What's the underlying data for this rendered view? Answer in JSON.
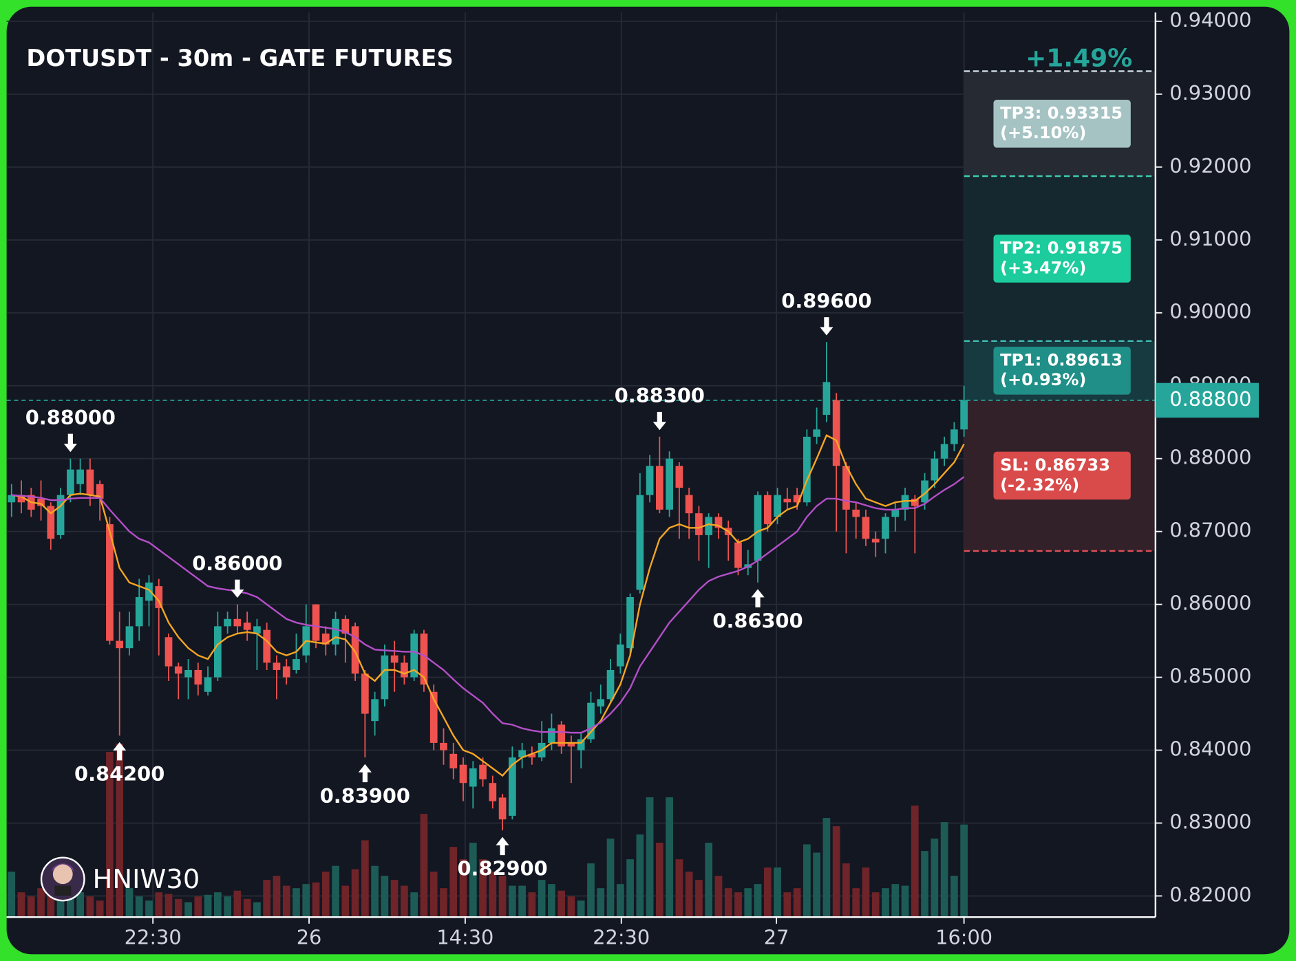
{
  "chart_data": {
    "type": "candlestick",
    "title": "DOTUSDT - 30m - GATE FUTURES",
    "watermark": "HNIW30",
    "pnl_label": "+1.49%",
    "x": [
      0,
      1,
      2,
      3,
      4,
      5,
      6,
      7,
      8,
      9,
      10,
      11,
      12,
      13,
      14,
      15,
      16,
      17,
      18,
      19,
      20,
      21,
      22,
      23,
      24,
      25,
      26,
      27,
      28,
      29,
      30,
      31,
      32,
      33,
      34,
      35,
      36,
      37,
      38,
      39,
      40,
      41,
      42,
      43,
      44,
      45,
      46,
      47,
      48,
      49,
      50,
      51,
      52,
      53,
      54,
      55,
      56,
      57,
      58,
      59,
      60,
      61,
      62,
      63,
      64,
      65,
      66,
      67,
      68,
      69,
      70,
      71,
      72,
      73,
      74,
      75,
      76,
      77,
      78,
      79,
      80,
      81,
      82,
      83,
      84,
      85,
      86,
      87,
      88,
      89,
      90,
      91,
      92,
      93,
      94,
      95,
      96,
      97
    ],
    "open": [
      0.874,
      0.875,
      0.875,
      0.8745,
      0.8735,
      0.8695,
      0.875,
      0.8765,
      0.8785,
      0.8765,
      0.871,
      0.855,
      0.854,
      0.857,
      0.8605,
      0.8625,
      0.8555,
      0.8515,
      0.85,
      0.851,
      0.848,
      0.85,
      0.857,
      0.858,
      0.8575,
      0.856,
      0.8565,
      0.852,
      0.8515,
      0.851,
      0.853,
      0.86,
      0.856,
      0.8545,
      0.858,
      0.857,
      0.8505,
      0.844,
      0.847,
      0.853,
      0.852,
      0.85,
      0.856,
      0.848,
      0.841,
      0.8395,
      0.838,
      0.835,
      0.838,
      0.8355,
      0.8335,
      0.831,
      0.839,
      0.8395,
      0.839,
      0.841,
      0.8435,
      0.841,
      0.84,
      0.8415,
      0.846,
      0.847,
      0.8515,
      0.854,
      0.862,
      0.875,
      0.879,
      0.873,
      0.879,
      0.875,
      0.8725,
      0.8695,
      0.872,
      0.8705,
      0.8685,
      0.865,
      0.866,
      0.875,
      0.872,
      0.8745,
      0.875,
      0.874,
      0.883,
      0.886,
      0.888,
      0.879,
      0.873,
      0.872,
      0.869,
      0.869,
      0.872,
      0.873,
      0.8745,
      0.874,
      0.877,
      0.88,
      0.882,
      0.884
    ],
    "high": [
      0.8765,
      0.877,
      0.876,
      0.877,
      0.874,
      0.876,
      0.88,
      0.88,
      0.88,
      0.877,
      0.872,
      0.859,
      0.859,
      0.8635,
      0.864,
      0.8635,
      0.856,
      0.852,
      0.8525,
      0.852,
      0.8515,
      0.859,
      0.859,
      0.86,
      0.859,
      0.858,
      0.8575,
      0.853,
      0.8525,
      0.856,
      0.86,
      0.86,
      0.857,
      0.859,
      0.8585,
      0.8575,
      0.851,
      0.848,
      0.8545,
      0.855,
      0.853,
      0.8565,
      0.8565,
      0.849,
      0.843,
      0.841,
      0.839,
      0.8385,
      0.839,
      0.8365,
      0.834,
      0.8405,
      0.841,
      0.8405,
      0.844,
      0.845,
      0.844,
      0.842,
      0.8425,
      0.848,
      0.849,
      0.8525,
      0.856,
      0.8615,
      0.878,
      0.8805,
      0.883,
      0.881,
      0.8795,
      0.876,
      0.8735,
      0.8725,
      0.8725,
      0.8715,
      0.869,
      0.8675,
      0.8755,
      0.8755,
      0.876,
      0.876,
      0.876,
      0.884,
      0.887,
      0.896,
      0.889,
      0.8795,
      0.874,
      0.873,
      0.87,
      0.8725,
      0.874,
      0.876,
      0.875,
      0.878,
      0.881,
      0.883,
      0.885,
      0.89
    ],
    "low": [
      0.872,
      0.8725,
      0.872,
      0.8715,
      0.8675,
      0.869,
      0.874,
      0.875,
      0.8735,
      0.8715,
      0.8545,
      0.842,
      0.853,
      0.855,
      0.857,
      0.853,
      0.8495,
      0.847,
      0.847,
      0.8475,
      0.8475,
      0.8495,
      0.856,
      0.856,
      0.855,
      0.851,
      0.851,
      0.847,
      0.849,
      0.8505,
      0.852,
      0.854,
      0.853,
      0.853,
      0.852,
      0.8495,
      0.839,
      0.842,
      0.846,
      0.848,
      0.849,
      0.8495,
      0.848,
      0.84,
      0.838,
      0.836,
      0.833,
      0.832,
      0.835,
      0.832,
      0.829,
      0.8305,
      0.8375,
      0.838,
      0.8385,
      0.84,
      0.8395,
      0.8355,
      0.8375,
      0.841,
      0.845,
      0.8465,
      0.8505,
      0.853,
      0.8615,
      0.874,
      0.8725,
      0.872,
      0.869,
      0.869,
      0.866,
      0.865,
      0.869,
      0.866,
      0.864,
      0.864,
      0.863,
      0.87,
      0.871,
      0.873,
      0.873,
      0.8735,
      0.882,
      0.885,
      0.87,
      0.867,
      0.869,
      0.868,
      0.8665,
      0.867,
      0.87,
      0.8715,
      0.867,
      0.873,
      0.876,
      0.879,
      0.881,
      0.883
    ],
    "close": [
      0.875,
      0.874,
      0.873,
      0.8735,
      0.869,
      0.875,
      0.8785,
      0.8785,
      0.875,
      0.8745,
      0.855,
      0.854,
      0.857,
      0.861,
      0.863,
      0.8595,
      0.8515,
      0.8505,
      0.851,
      0.849,
      0.85,
      0.857,
      0.858,
      0.857,
      0.8565,
      0.857,
      0.852,
      0.851,
      0.85,
      0.8525,
      0.857,
      0.855,
      0.8545,
      0.858,
      0.856,
      0.8505,
      0.845,
      0.847,
      0.853,
      0.852,
      0.85,
      0.856,
      0.849,
      0.841,
      0.84,
      0.8375,
      0.8355,
      0.8375,
      0.836,
      0.833,
      0.8305,
      0.839,
      0.84,
      0.839,
      0.841,
      0.843,
      0.8405,
      0.8405,
      0.8415,
      0.8465,
      0.847,
      0.851,
      0.8545,
      0.861,
      0.875,
      0.879,
      0.873,
      0.88,
      0.876,
      0.8725,
      0.8695,
      0.872,
      0.8705,
      0.8695,
      0.865,
      0.8655,
      0.875,
      0.871,
      0.875,
      0.874,
      0.874,
      0.883,
      0.884,
      0.8905,
      0.879,
      0.873,
      0.872,
      0.869,
      0.8685,
      0.872,
      0.873,
      0.875,
      0.8735,
      0.877,
      0.88,
      0.882,
      0.884,
      0.888
    ],
    "up_color": "#26a69a",
    "down_color": "#ef5350",
    "volume": [
      55,
      30,
      25,
      35,
      25,
      28,
      40,
      30,
      25,
      20,
      200,
      210,
      35,
      25,
      20,
      30,
      28,
      22,
      18,
      25,
      27,
      30,
      25,
      32,
      22,
      18,
      45,
      50,
      38,
      35,
      40,
      42,
      55,
      62,
      38,
      58,
      93,
      62,
      50,
      45,
      38,
      30,
      125,
      55,
      35,
      85,
      70,
      90,
      70,
      55,
      50,
      38,
      38,
      30,
      45,
      40,
      32,
      25,
      20,
      65,
      35,
      95,
      40,
      70,
      100,
      145,
      90,
      145,
      70,
      55,
      45,
      90,
      50,
      35,
      30,
      35,
      40,
      60,
      60,
      30,
      35,
      88,
      78,
      120,
      110,
      65,
      35,
      60,
      30,
      35,
      40,
      38,
      135,
      80,
      95,
      115,
      50,
      112
    ],
    "volume_up_color": "#1d5c56",
    "volume_down_color": "#6e2428",
    "series": [
      {
        "color": "#f5a623",
        "values": [
          0.875,
          0.8748,
          0.874,
          0.8738,
          0.8725,
          0.8735,
          0.875,
          0.8752,
          0.875,
          0.8748,
          0.87,
          0.865,
          0.863,
          0.8625,
          0.862,
          0.8605,
          0.8575,
          0.8555,
          0.854,
          0.853,
          0.8525,
          0.8545,
          0.8555,
          0.856,
          0.8562,
          0.856,
          0.855,
          0.8535,
          0.853,
          0.8535,
          0.855,
          0.8548,
          0.8546,
          0.8555,
          0.8552,
          0.8535,
          0.8505,
          0.8495,
          0.851,
          0.851,
          0.8505,
          0.851,
          0.85,
          0.847,
          0.8445,
          0.842,
          0.84,
          0.8395,
          0.8385,
          0.8375,
          0.8365,
          0.838,
          0.839,
          0.8395,
          0.84,
          0.841,
          0.841,
          0.841,
          0.841,
          0.8425,
          0.844,
          0.8465,
          0.849,
          0.853,
          0.86,
          0.865,
          0.869,
          0.8705,
          0.871,
          0.8705,
          0.8705,
          0.871,
          0.8708,
          0.87,
          0.8685,
          0.869,
          0.87,
          0.8705,
          0.872,
          0.873,
          0.8735,
          0.877,
          0.88,
          0.8832,
          0.8825,
          0.879,
          0.8765,
          0.8745,
          0.874,
          0.8735,
          0.874,
          0.8742,
          0.8742,
          0.8752,
          0.8765,
          0.878,
          0.8795,
          0.882
        ]
      },
      {
        "color": "#b44fc8",
        "values": [
          0.875,
          0.8749,
          0.8748,
          0.8746,
          0.8743,
          0.8743,
          0.8745,
          0.8746,
          0.8746,
          0.8746,
          0.873,
          0.8715,
          0.87,
          0.869,
          0.8685,
          0.8675,
          0.8665,
          0.8655,
          0.8645,
          0.8635,
          0.8625,
          0.8622,
          0.862,
          0.8618,
          0.8615,
          0.861,
          0.86,
          0.859,
          0.858,
          0.8575,
          0.8572,
          0.857,
          0.8568,
          0.8566,
          0.8562,
          0.8555,
          0.8545,
          0.8538,
          0.8537,
          0.8536,
          0.8535,
          0.8535,
          0.853,
          0.852,
          0.851,
          0.8497,
          0.8485,
          0.8475,
          0.8465,
          0.845,
          0.8437,
          0.8435,
          0.843,
          0.8427,
          0.8425,
          0.8425,
          0.8425,
          0.8424,
          0.8424,
          0.843,
          0.8438,
          0.845,
          0.8465,
          0.8485,
          0.8515,
          0.8535,
          0.8555,
          0.8575,
          0.859,
          0.8605,
          0.862,
          0.8632,
          0.8638,
          0.8642,
          0.8646,
          0.8652,
          0.866,
          0.867,
          0.868,
          0.869,
          0.87,
          0.872,
          0.8735,
          0.8745,
          0.8745,
          0.8742,
          0.874,
          0.8736,
          0.8732,
          0.873,
          0.873,
          0.8732,
          0.8732,
          0.8738,
          0.8748,
          0.8757,
          0.8765,
          0.8775
        ]
      }
    ],
    "xlim": [
      -0.5,
      116.5
    ],
    "xticks": [
      {
        "value": 14.4,
        "label": "22:30"
      },
      {
        "value": 30.3,
        "label": "26"
      },
      {
        "value": 46.2,
        "label": "14:30"
      },
      {
        "value": 62.1,
        "label": "22:30"
      },
      {
        "value": 77.9,
        "label": "27"
      },
      {
        "value": 97,
        "label": "16:00"
      }
    ],
    "ylim": [
      0.8171,
      0.9412
    ],
    "yticks": [
      {
        "value": 0.82,
        "label": "0.82000"
      },
      {
        "value": 0.83,
        "label": "0.83000"
      },
      {
        "value": 0.84,
        "label": "0.84000"
      },
      {
        "value": 0.85,
        "label": "0.85000"
      },
      {
        "value": 0.86,
        "label": "0.86000"
      },
      {
        "value": 0.87,
        "label": "0.87000"
      },
      {
        "value": 0.88,
        "label": "0.88000"
      },
      {
        "value": 0.89,
        "label": "0.89000"
      },
      {
        "value": 0.9,
        "label": "0.90000"
      },
      {
        "value": 0.91,
        "label": "0.91000"
      },
      {
        "value": 0.92,
        "label": "0.92000"
      },
      {
        "value": 0.93,
        "label": "0.93000"
      },
      {
        "value": 0.94,
        "label": "0.94000"
      }
    ],
    "grid": true,
    "last_price": {
      "value": 0.888,
      "label": "0.88800",
      "color": "#26a69a"
    },
    "levels": [
      {
        "value": 0.89613,
        "label": "TP1: 0.89613",
        "change": "(+0.93%)",
        "line_color": "#3fb8ad",
        "zone_color": "#173a40",
        "box_color": "#1f8f87"
      },
      {
        "value": 0.91875,
        "label": "TP2: 0.91875",
        "change": "(+3.47%)",
        "line_color": "#3fcfb0",
        "zone_color": "#15272f",
        "box_color": "#1ccc9c"
      },
      {
        "value": 0.93315,
        "label": "TP3: 0.93315",
        "change": "(+5.10%)",
        "line_color": "#c9d3da",
        "zone_color": "#252a33",
        "box_color": "#a6c3c4"
      },
      {
        "value": 0.86733,
        "label": "SL: 0.86733",
        "change": "(-2.32%)",
        "line_color": "#e04f55",
        "zone_color": "#33212a",
        "box_color": "#d94a4a"
      }
    ],
    "annotations": [
      {
        "x": 6,
        "value": 0.88,
        "label": "0.88000",
        "position": "above"
      },
      {
        "x": 11,
        "value": 0.842,
        "label": "0.84200",
        "position": "below"
      },
      {
        "x": 23,
        "value": 0.86,
        "label": "0.86000",
        "position": "above"
      },
      {
        "x": 36,
        "value": 0.839,
        "label": "0.83900",
        "position": "below"
      },
      {
        "x": 50,
        "value": 0.829,
        "label": "0.82900",
        "position": "below"
      },
      {
        "x": 66,
        "value": 0.883,
        "label": "0.88300",
        "position": "above"
      },
      {
        "x": 76,
        "value": 0.863,
        "label": "0.86300",
        "position": "below"
      },
      {
        "x": 83,
        "value": 0.896,
        "label": "0.89600",
        "position": "above"
      }
    ]
  }
}
